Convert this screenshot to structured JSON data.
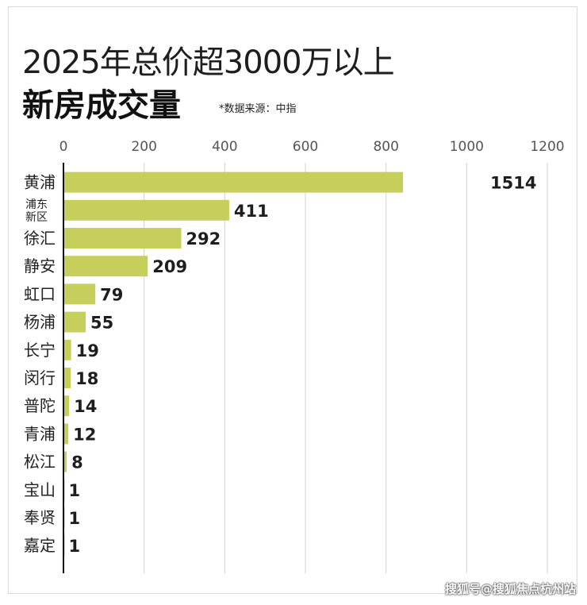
{
  "title_line1": "2025年总价超3000万以上",
  "title_line2": "新房成交量",
  "source_note": "*数据来源：中指",
  "watermark": "搜狐号@搜狐焦点杭州站",
  "colors": {
    "bar": "#c6cf5c",
    "axis": "#111111",
    "grid": "#d0d0d0",
    "text": "#1e1e1e"
  },
  "chart_data": {
    "type": "bar",
    "orientation": "horizontal",
    "title": "2025年总价超3000万以上 新房成交量",
    "xlim": [
      0,
      1200
    ],
    "xticks": [
      "0",
      "200",
      "400",
      "600",
      "800",
      "1000",
      "1200"
    ],
    "grid": true,
    "note": "黄浦 bar truncated at axis; label shows actual value",
    "categories": [
      "黄浦",
      "浦东\n新区",
      "徐汇",
      "静安",
      "虹口",
      "杨浦",
      "长宁",
      "闵行",
      "普陀",
      "青浦",
      "松江",
      "宝山",
      "奉贤",
      "嘉定"
    ],
    "values": [
      1514,
      411,
      292,
      209,
      79,
      55,
      19,
      18,
      14,
      12,
      8,
      1,
      1,
      1
    ],
    "value_labels": [
      "1514",
      "411",
      "292",
      "209",
      "79",
      "55",
      "19",
      "18",
      "14",
      "12",
      "8",
      "1",
      "1",
      "1"
    ]
  }
}
